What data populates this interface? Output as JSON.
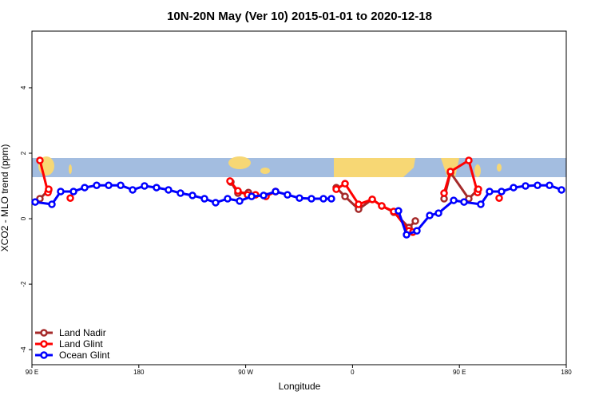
{
  "chart_data": {
    "type": "line",
    "title": "10N-20N May (Ver 10)   2015-01-01 to 2020-12-18",
    "x_label": "Longitude",
    "y_label": "XCO2 - MLO trend (ppm)",
    "xlim": [
      90,
      540
    ],
    "xticks": [
      {
        "value": 90,
        "label": "90 E"
      },
      180,
      {
        "value": 270,
        "label": "90 W"
      },
      {
        "value": 360,
        "label": "0"
      },
      {
        "value": 450,
        "label": "90 E"
      },
      180
    ],
    "ylim": [
      -4.46,
      5.73
    ],
    "yticks": [
      -4,
      -2,
      0,
      2,
      4
    ],
    "legend": "bottomleft",
    "series": [
      {
        "name": "Land Nadir",
        "color": "#a52a2a",
        "x": [
          96.7,
          104.1,
          null,
          257.5,
          263.5,
          272.3,
          null,
          295.2,
          null,
          346.3,
          353.7,
          365.1,
          376.6,
          384.6,
          394.7,
          407.5,
          412.9,
          null,
          437.1,
          442.5,
          457.9,
          465.3
        ],
        "values": [
          0.61,
          0.88,
          null,
          1.12,
          0.78,
          0.8,
          null,
          0.83,
          null,
          0.95,
          0.68,
          0.29,
          0.59,
          0.39,
          0.2,
          -0.27,
          -0.07,
          null,
          0.61,
          1.41,
          0.61,
          0.88
        ]
      },
      {
        "name": "Land Glint",
        "color": "#ff0000",
        "x": [
          96.7,
          103.5,
          104.1,
          null,
          122.3,
          null,
          256.8,
          263.5,
          271.6,
          278.3,
          287.1,
          295.2,
          null,
          346.3,
          353.7,
          365.1,
          376.6,
          384.6,
          394.7,
          407.5,
          410.8,
          null,
          437.1,
          442.5,
          457.9,
          465.3,
          466.0,
          null,
          483.5
        ],
        "values": [
          1.78,
          0.8,
          0.9,
          null,
          0.63,
          null,
          1.15,
          0.85,
          0.73,
          0.73,
          0.68,
          0.83,
          null,
          0.9,
          1.07,
          0.44,
          0.59,
          0.39,
          0.22,
          -0.37,
          -0.41,
          null,
          0.78,
          1.44,
          1.78,
          0.8,
          0.9,
          null,
          0.63
        ]
      },
      {
        "name": "Ocean Glint",
        "color": "#0000ff",
        "x": [
          92.7,
          106.8,
          114.2,
          125,
          134.4,
          144.5,
          154.6,
          164.7,
          174.8,
          184.8,
          194.9,
          205,
          215.1,
          225.2,
          235.3,
          244.7,
          254.8,
          264.9,
          275,
          285.1,
          295.2,
          305.2,
          315.3,
          325.4,
          335.5,
          342.2,
          null,
          398.7,
          405.5,
          414.2,
          425,
          432.4,
          445.2,
          453.9,
          468,
          475.4,
          485.5,
          495.6,
          505.7,
          515.8,
          525.9,
          536
        ],
        "values": [
          0.51,
          0.44,
          0.83,
          0.83,
          0.95,
          1.02,
          1.02,
          1.02,
          0.88,
          1.0,
          0.95,
          0.88,
          0.78,
          0.71,
          0.61,
          0.49,
          0.61,
          0.54,
          0.68,
          0.71,
          0.83,
          0.73,
          0.63,
          0.61,
          0.61,
          0.61,
          null,
          0.24,
          -0.49,
          -0.37,
          0.1,
          0.17,
          0.56,
          0.51,
          0.44,
          0.83,
          0.83,
          0.95,
          1.0,
          1.02,
          1.02,
          0.88
        ]
      }
    ]
  }
}
